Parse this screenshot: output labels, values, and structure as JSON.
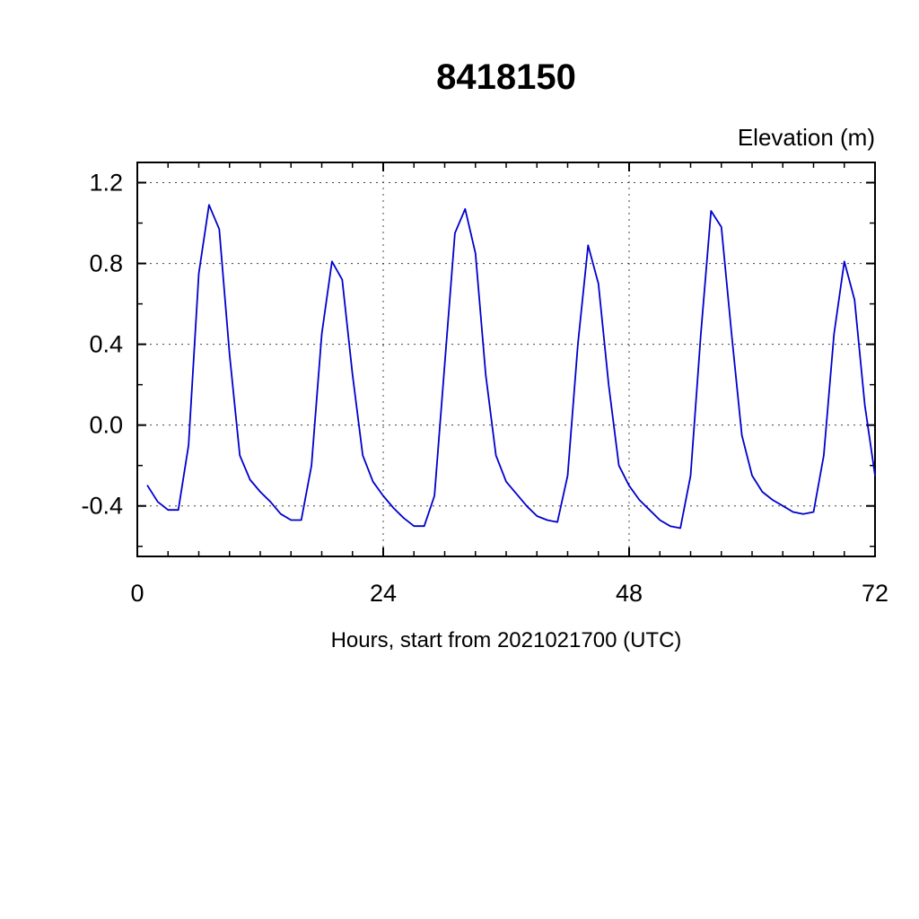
{
  "title": "8418150",
  "y_axis_title": "Elevation (m)",
  "x_axis_label": "Hours, start from 2021021700 (UTC)",
  "chart_data": {
    "type": "line",
    "title": "8418150",
    "xlabel": "Hours, start from 2021021700 (UTC)",
    "ylabel": "Elevation (m)",
    "xlim": [
      0,
      72
    ],
    "ylim": [
      -0.65,
      1.3
    ],
    "x_ticks": [
      0,
      24,
      48,
      72
    ],
    "y_ticks": [
      -0.4,
      0.0,
      0.4,
      0.8,
      1.2
    ],
    "x_minor_step": 3,
    "y_minor_step": 0.2,
    "grid": true,
    "legend": "none",
    "line_color": "#0000cc",
    "series": [
      {
        "name": "elevation",
        "x": [
          1,
          2,
          3,
          4,
          5,
          6,
          7,
          8,
          9,
          10,
          11,
          12,
          13,
          14,
          15,
          16,
          17,
          18,
          19,
          20,
          21,
          22,
          23,
          24,
          25,
          26,
          27,
          28,
          29,
          30,
          31,
          32,
          33,
          34,
          35,
          36,
          37,
          38,
          39,
          40,
          41,
          42,
          43,
          44,
          45,
          46,
          47,
          48,
          49,
          50,
          51,
          52,
          53,
          54,
          55,
          56,
          57,
          58,
          59,
          60,
          61,
          62,
          63,
          64,
          65,
          66,
          67,
          68,
          69,
          70,
          71,
          72
        ],
        "y": [
          -0.3,
          -0.38,
          -0.42,
          -0.42,
          -0.1,
          0.75,
          1.09,
          0.97,
          0.35,
          -0.15,
          -0.27,
          -0.33,
          -0.38,
          -0.44,
          -0.47,
          -0.47,
          -0.2,
          0.45,
          0.81,
          0.72,
          0.25,
          -0.15,
          -0.28,
          -0.35,
          -0.41,
          -0.46,
          -0.5,
          -0.5,
          -0.35,
          0.3,
          0.95,
          1.07,
          0.85,
          0.25,
          -0.15,
          -0.28,
          -0.34,
          -0.4,
          -0.45,
          -0.47,
          -0.48,
          -0.25,
          0.4,
          0.89,
          0.7,
          0.2,
          -0.2,
          -0.3,
          -0.37,
          -0.42,
          -0.47,
          -0.5,
          -0.51,
          -0.25,
          0.45,
          1.06,
          0.98,
          0.45,
          -0.05,
          -0.25,
          -0.33,
          -0.37,
          -0.4,
          -0.43,
          -0.44,
          -0.43,
          -0.15,
          0.45,
          0.81,
          0.62,
          0.1,
          -0.25
        ]
      }
    ]
  }
}
